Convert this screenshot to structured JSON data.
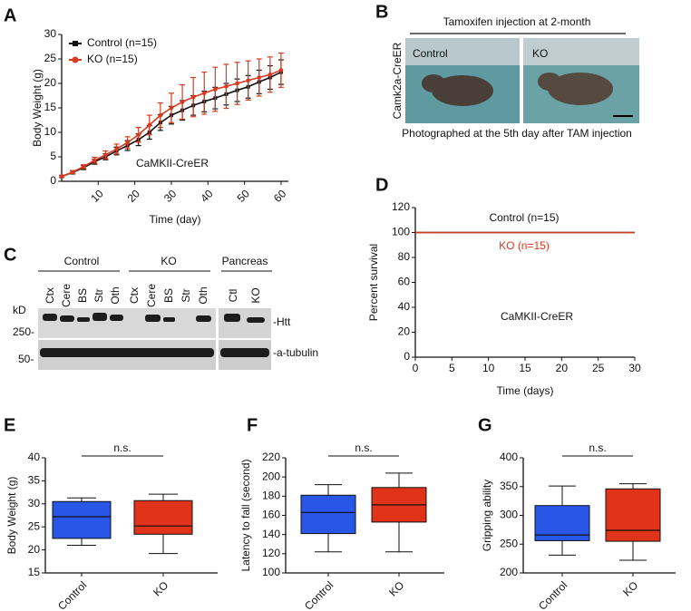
{
  "chart_data": [
    {
      "type": "line",
      "panel_label": "A",
      "xlabel": "Time (day)",
      "ylabel": "Body Weight (g)",
      "annotation": "CaMKII-CreER",
      "legend": "upper-left",
      "x": [
        0,
        3,
        6,
        9,
        12,
        15,
        18,
        21,
        24,
        27,
        30,
        33,
        36,
        39,
        42,
        45,
        48,
        51,
        54,
        57,
        60
      ],
      "series": [
        {
          "name": "Control  (n=15)",
          "color": "#111111",
          "marker": "square",
          "values": [
            1,
            1.8,
            2.8,
            4,
            5,
            6.2,
            7.3,
            8.5,
            10,
            12,
            13.5,
            14.5,
            15.5,
            16.3,
            17,
            17.8,
            18.6,
            19.3,
            20.3,
            21.2,
            22.3
          ],
          "errors": [
            0.2,
            0.3,
            0.4,
            0.5,
            0.6,
            0.8,
            1,
            1.2,
            1.4,
            1.6,
            1.8,
            2,
            2,
            2.1,
            2.2,
            2.2,
            2.3,
            2.3,
            2.4,
            2.4,
            2.5
          ]
        },
        {
          "name": "KO (n=15)",
          "color": "#d93a1e",
          "marker": "circle",
          "values": [
            1,
            1.9,
            3,
            4.3,
            5.4,
            6.6,
            7.9,
            9.5,
            11.5,
            13.5,
            15,
            16.2,
            17.2,
            18,
            18.8,
            19.4,
            20,
            20.6,
            21.2,
            21.8,
            22.7
          ],
          "errors": [
            0.2,
            0.3,
            0.4,
            0.6,
            0.8,
            1,
            1.2,
            1.5,
            2,
            2.5,
            3,
            3.5,
            4,
            4.3,
            4.5,
            4.5,
            4.3,
            4,
            3.8,
            3.6,
            3.5
          ]
        }
      ],
      "xlim": [
        0,
        62
      ],
      "xticks": [
        10,
        20,
        30,
        40,
        50,
        60
      ],
      "ylim": [
        0,
        30
      ],
      "yticks": [
        0,
        5,
        10,
        15,
        20,
        25,
        30
      ]
    },
    {
      "type": "line",
      "panel_label": "D",
      "xlabel": "Time (days)",
      "ylabel": "Percent survival",
      "annotation": "CaMKII-CreER",
      "x": [
        0,
        30
      ],
      "series": [
        {
          "name": "Control (n=15)",
          "color": "#111111",
          "values": [
            100,
            100
          ]
        },
        {
          "name": "KO (n=15)",
          "color": "#d93a1e",
          "values": [
            100,
            100
          ]
        }
      ],
      "xlim": [
        0,
        30
      ],
      "xticks": [
        0,
        5,
        10,
        15,
        20,
        25,
        30
      ],
      "ylim": [
        0,
        120
      ],
      "yticks": [
        0,
        20,
        40,
        60,
        80,
        100,
        120
      ]
    },
    {
      "type": "box",
      "panel_label": "E",
      "ylabel": "Body Weight (g)",
      "annotation": "n.s.",
      "categories": [
        "Control",
        "KO"
      ],
      "colors": [
        "#2a56e8",
        "#e0331a"
      ],
      "boxes": [
        {
          "min": 21,
          "q1": 22.5,
          "median": 27.2,
          "q3": 30.5,
          "max": 31.3
        },
        {
          "min": 19.2,
          "q1": 23.4,
          "median": 25.2,
          "q3": 30.7,
          "max": 32.1
        }
      ],
      "ylim": [
        15,
        40
      ],
      "yticks": [
        15,
        20,
        25,
        30,
        35,
        40
      ]
    },
    {
      "type": "box",
      "panel_label": "F",
      "ylabel": "Latency to fall (second)",
      "annotation": "n.s.",
      "categories": [
        "Control",
        "KO"
      ],
      "colors": [
        "#2a56e8",
        "#e0331a"
      ],
      "boxes": [
        {
          "min": 122,
          "q1": 141,
          "median": 163,
          "q3": 181,
          "max": 192
        },
        {
          "min": 122,
          "q1": 153,
          "median": 171,
          "q3": 189,
          "max": 204
        }
      ],
      "ylim": [
        100,
        220
      ],
      "yticks": [
        100,
        120,
        140,
        160,
        180,
        200,
        220
      ]
    },
    {
      "type": "box",
      "panel_label": "G",
      "ylabel": "Gripping ability",
      "annotation": "n.s.",
      "categories": [
        "Control",
        "KO"
      ],
      "colors": [
        "#2a56e8",
        "#e0331a"
      ],
      "boxes": [
        {
          "min": 231,
          "q1": 256,
          "median": 266,
          "q3": 317,
          "max": 351
        },
        {
          "min": 222,
          "q1": 255,
          "median": 274,
          "q3": 346,
          "max": 355
        }
      ],
      "ylim": [
        200,
        400
      ],
      "yticks": [
        200,
        250,
        300,
        350,
        400
      ]
    }
  ],
  "photo": {
    "panel_label": "B",
    "title": "Tamoxifen injection at 2-month",
    "side_label": "Camk2a-CreER",
    "left": "Control",
    "right": "KO",
    "caption": "Photographed at the 5th day after TAM injection"
  },
  "blot": {
    "panel_label": "C",
    "groups": [
      "Control",
      "KO",
      "Pancreas"
    ],
    "lanes": [
      "Ctx",
      "Cere",
      "BS",
      "Str",
      "Oth",
      "Ctx",
      "Cere",
      "BS",
      "Str",
      "Oth",
      "Ctl",
      "KO"
    ],
    "unit": "kD",
    "markers": [
      "250-",
      "50-"
    ],
    "bands": [
      "-Htt",
      "-a-tubulin"
    ]
  }
}
